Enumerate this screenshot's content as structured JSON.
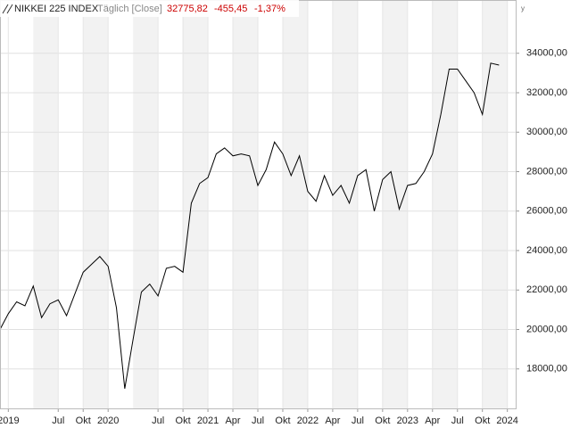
{
  "header": {
    "name": "NIKKEI 225 INDEX",
    "mode": "Täglich [Close]",
    "last": "32775,82",
    "change": "-455,45",
    "change_pct": "-1,37%",
    "corner": "y"
  },
  "chart_data": {
    "type": "line",
    "color": "#000000",
    "grid": true,
    "x": [
      "2018-12",
      "2019-01",
      "2019-02",
      "2019-03",
      "2019-04",
      "2019-05",
      "2019-06",
      "2019-07",
      "2019-08",
      "2019-09",
      "2019-10",
      "2019-11",
      "2019-12",
      "2020-01",
      "2020-02",
      "2020-03",
      "2020-04",
      "2020-05",
      "2020-06",
      "2020-07",
      "2020-08",
      "2020-09",
      "2020-10",
      "2020-11",
      "2020-12",
      "2021-01",
      "2021-02",
      "2021-03",
      "2021-04",
      "2021-05",
      "2021-06",
      "2021-07",
      "2021-08",
      "2021-09",
      "2021-10",
      "2021-11",
      "2021-12",
      "2022-01",
      "2022-02",
      "2022-03",
      "2022-04",
      "2022-05",
      "2022-06",
      "2022-07",
      "2022-08",
      "2022-09",
      "2022-10",
      "2022-11",
      "2022-12",
      "2023-01",
      "2023-02",
      "2023-03",
      "2023-04",
      "2023-05",
      "2023-06",
      "2023-07",
      "2023-08",
      "2023-09",
      "2023-10",
      "2023-11",
      "2023-12"
    ],
    "values": [
      20000,
      20800,
      21400,
      21200,
      22200,
      20600,
      21300,
      21500,
      20700,
      21800,
      22900,
      23300,
      23700,
      23200,
      21100,
      17000,
      19500,
      21900,
      22300,
      21700,
      23100,
      23200,
      22900,
      26400,
      27400,
      27700,
      28900,
      29200,
      28800,
      28900,
      28800,
      27300,
      28100,
      29500,
      28900,
      27800,
      28800,
      27000,
      26500,
      27800,
      26800,
      27300,
      26400,
      27800,
      28100,
      26000,
      27600,
      28000,
      26100,
      27300,
      27400,
      28000,
      28900,
      30900,
      33200,
      33200,
      32600,
      32000,
      30900,
      33500,
      33400
    ],
    "xlim": [
      "2018-12",
      "2024-02"
    ],
    "xticks": [
      {
        "value": "2019-01",
        "label": "2019"
      },
      {
        "value": "2019-07",
        "label": "Jul"
      },
      {
        "value": "2019-10",
        "label": "Okt"
      },
      {
        "value": "2020-01",
        "label": "2020"
      },
      {
        "value": "2020-07",
        "label": "Jul"
      },
      {
        "value": "2020-10",
        "label": "Okt"
      },
      {
        "value": "2021-01",
        "label": "2021"
      },
      {
        "value": "2021-04",
        "label": "Apr"
      },
      {
        "value": "2021-07",
        "label": "Jul"
      },
      {
        "value": "2021-10",
        "label": "Okt"
      },
      {
        "value": "2022-01",
        "label": "2022"
      },
      {
        "value": "2022-04",
        "label": "Apr"
      },
      {
        "value": "2022-07",
        "label": "Jul"
      },
      {
        "value": "2022-10",
        "label": "Okt"
      },
      {
        "value": "2023-01",
        "label": "2023"
      },
      {
        "value": "2023-04",
        "label": "Apr"
      },
      {
        "value": "2023-07",
        "label": "Jul"
      },
      {
        "value": "2023-10",
        "label": "Okt"
      },
      {
        "value": "2024-01",
        "label": "2024"
      }
    ],
    "ylim": [
      16000,
      36700
    ],
    "yticks": [
      {
        "value": 18000,
        "label": "18000,00"
      },
      {
        "value": 20000,
        "label": "20000,00"
      },
      {
        "value": 22000,
        "label": "22000,00"
      },
      {
        "value": 24000,
        "label": "24000,00"
      },
      {
        "value": 26000,
        "label": "26000,00"
      },
      {
        "value": 28000,
        "label": "28000,00"
      },
      {
        "value": 30000,
        "label": "30000,00"
      },
      {
        "value": 32000,
        "label": "32000,00"
      },
      {
        "value": 34000,
        "label": "34000,00"
      }
    ]
  }
}
